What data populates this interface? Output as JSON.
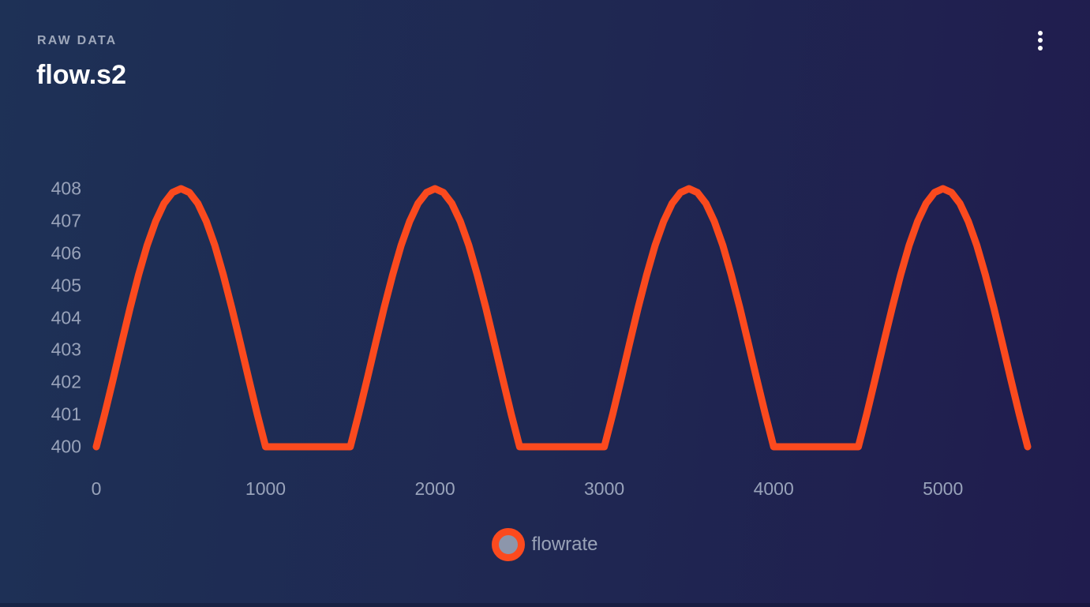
{
  "panel": {
    "eyebrow": "RAW DATA",
    "title": "flow.s2",
    "menu": {
      "icon": "kebab-menu-icon"
    }
  },
  "colors": {
    "background_gradient_left": "#1e3156",
    "background_gradient_right": "#201c4e",
    "series_flowrate": "#fb4a1e",
    "axis_tick_text": "#99a3ba",
    "eyebrow_text": "#9ea7ba",
    "title_text": "#ffffff",
    "legend_text": "#9aa3b8",
    "legend_marker_fill": "#8c96ab",
    "menu_icon": "#ffffff"
  },
  "chart_data": {
    "type": "line",
    "title": "flow.s2",
    "xlabel": "",
    "ylabel": "",
    "xlim": [
      0,
      5500
    ],
    "ylim": [
      400,
      408
    ],
    "x_ticks": [
      0,
      1000,
      2000,
      3000,
      4000,
      5000
    ],
    "y_ticks": [
      400,
      401,
      402,
      403,
      404,
      405,
      406,
      407,
      408
    ],
    "grid": false,
    "legend_position": "bottom-center",
    "series": [
      {
        "name": "flowrate",
        "color": "#fb4a1e",
        "line_width": 9,
        "x_start": 0,
        "x_step": 50,
        "values": [
          400,
          401.02,
          402.11,
          403.22,
          404.31,
          405.33,
          406.24,
          406.98,
          407.54,
          407.88,
          408,
          407.88,
          407.54,
          406.98,
          406.24,
          405.33,
          404.31,
          403.22,
          402.11,
          401.02,
          400,
          400,
          400,
          400,
          400,
          400,
          400,
          400,
          400,
          400,
          400,
          401.02,
          402.11,
          403.22,
          404.31,
          405.33,
          406.24,
          406.98,
          407.54,
          407.88,
          408,
          407.88,
          407.54,
          406.98,
          406.24,
          405.33,
          404.31,
          403.22,
          402.11,
          401.02,
          400,
          400,
          400,
          400,
          400,
          400,
          400,
          400,
          400,
          400,
          400,
          401.02,
          402.11,
          403.22,
          404.31,
          405.33,
          406.24,
          406.98,
          407.54,
          407.88,
          408,
          407.88,
          407.54,
          406.98,
          406.24,
          405.33,
          404.31,
          403.22,
          402.11,
          401.02,
          400,
          400,
          400,
          400,
          400,
          400,
          400,
          400,
          400,
          400,
          400,
          401.02,
          402.11,
          403.22,
          404.31,
          405.33,
          406.24,
          406.98,
          407.54,
          407.88,
          408,
          407.88,
          407.54,
          406.98,
          406.24,
          405.33,
          404.31,
          403.22,
          402.11,
          401.02,
          400
        ]
      }
    ]
  },
  "legend": {
    "items": [
      {
        "label": "flowrate",
        "color": "#fb4a1e"
      }
    ]
  }
}
